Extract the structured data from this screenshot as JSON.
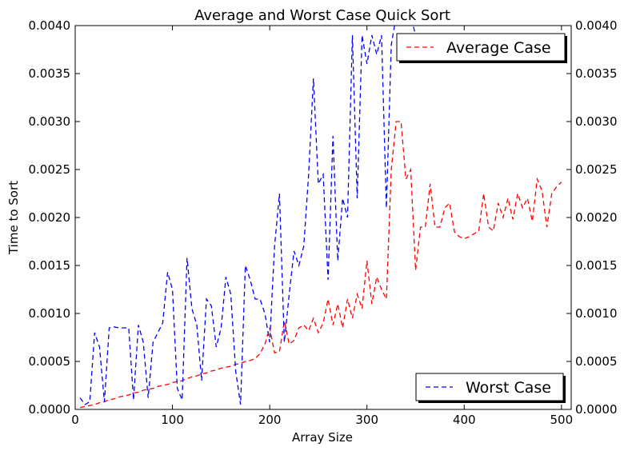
{
  "chart_data": {
    "type": "line",
    "title": "Average and Worst Case Quick Sort",
    "xlabel": "Array Size",
    "ylabel": "Time to Sort",
    "xlim": [
      0,
      510
    ],
    "ylim": [
      0,
      0.004
    ],
    "x_ticks": [
      "0",
      "100",
      "200",
      "300",
      "400",
      "500"
    ],
    "y_ticks": [
      "0.0000",
      "0.0005",
      "0.0010",
      "0.0015",
      "0.0020",
      "0.0025",
      "0.0030",
      "0.0035",
      "0.0040"
    ],
    "y_ticks_right": [
      "0.0000",
      "0.0005",
      "0.0010",
      "0.0015",
      "0.0020",
      "0.0025",
      "0.0030",
      "0.0035",
      "0.0040"
    ],
    "grid": false,
    "series": [
      {
        "name": "Average Case",
        "color": "#ff0000",
        "dash": "dashed",
        "legend_position": "top-right",
        "x": [
          5,
          10,
          15,
          20,
          25,
          30,
          35,
          40,
          45,
          50,
          55,
          60,
          65,
          70,
          75,
          80,
          85,
          90,
          95,
          100,
          105,
          110,
          115,
          120,
          125,
          130,
          135,
          140,
          145,
          150,
          155,
          160,
          165,
          170,
          175,
          180,
          185,
          190,
          195,
          200,
          205,
          210,
          215,
          220,
          225,
          230,
          235,
          240,
          245,
          250,
          255,
          260,
          265,
          270,
          275,
          280,
          285,
          290,
          295,
          300,
          305,
          310,
          315,
          320,
          325,
          330,
          335,
          340,
          345,
          350,
          355,
          360,
          365,
          370,
          375,
          380,
          385,
          390,
          395,
          400,
          405,
          410,
          415,
          420,
          425,
          430,
          435,
          440,
          445,
          450,
          455,
          460,
          465,
          470,
          475,
          480,
          485,
          490,
          495,
          500
        ],
        "values": [
          2e-05,
          3e-05,
          4e-05,
          5e-05,
          7e-05,
          8e-05,
          0.0001,
          0.00011,
          0.00013,
          0.00014,
          0.00015,
          0.00017,
          0.00018,
          0.0002,
          0.00021,
          0.00022,
          0.00024,
          0.00025,
          0.00026,
          0.00028,
          0.00029,
          0.0003,
          0.00032,
          0.00034,
          0.00035,
          0.00037,
          0.00038,
          0.0004,
          0.00041,
          0.00043,
          0.00044,
          0.00045,
          0.00047,
          0.00048,
          0.0005,
          0.00051,
          0.00053,
          0.00058,
          0.00068,
          0.00085,
          0.00059,
          0.0006,
          0.00092,
          0.00068,
          0.00072,
          0.00085,
          0.00088,
          0.00082,
          0.00095,
          0.0008,
          0.0009,
          0.00115,
          0.00088,
          0.0011,
          0.00085,
          0.00115,
          0.00095,
          0.0012,
          0.00105,
          0.00155,
          0.0011,
          0.00138,
          0.00125,
          0.00115,
          0.0025,
          0.003,
          0.003,
          0.0024,
          0.0025,
          0.00145,
          0.0019,
          0.0019,
          0.00235,
          0.0019,
          0.0019,
          0.0021,
          0.00215,
          0.00185,
          0.0018,
          0.00178,
          0.0018,
          0.00183,
          0.00186,
          0.00225,
          0.0019,
          0.00186,
          0.00215,
          0.002,
          0.0022,
          0.00198,
          0.00225,
          0.0021,
          0.0022,
          0.00196,
          0.0024,
          0.00228,
          0.0019,
          0.00225,
          0.00232,
          0.00237
        ]
      },
      {
        "name": "Worst Case",
        "color": "#0000ff",
        "dash": "dashed",
        "legend_position": "bottom-right",
        "x": [
          5,
          10,
          15,
          20,
          25,
          30,
          35,
          40,
          45,
          50,
          55,
          60,
          65,
          70,
          75,
          80,
          85,
          90,
          95,
          100,
          105,
          110,
          115,
          120,
          125,
          130,
          135,
          140,
          145,
          150,
          155,
          160,
          165,
          170,
          175,
          180,
          185,
          190,
          195,
          200,
          205,
          210,
          215,
          220,
          225,
          230,
          235,
          240,
          245,
          250,
          255,
          260,
          265,
          270,
          275,
          280,
          285,
          290,
          295,
          300,
          305,
          310,
          315,
          320,
          325,
          330,
          335,
          340,
          345,
          350
        ],
        "values": [
          0.00012,
          5e-05,
          8e-05,
          0.0008,
          0.00065,
          8e-05,
          0.00085,
          0.00086,
          0.00085,
          0.00085,
          0.00085,
          0.0001,
          0.00088,
          0.0007,
          0.00012,
          0.0007,
          0.0008,
          0.0009,
          0.00143,
          0.00125,
          0.00022,
          0.0001,
          0.00158,
          0.00105,
          0.00088,
          0.0003,
          0.00115,
          0.00108,
          0.00065,
          0.00085,
          0.00138,
          0.0012,
          0.0004,
          5e-05,
          0.0015,
          0.00135,
          0.00115,
          0.00115,
          0.001,
          0.0007,
          0.0017,
          0.00225,
          0.0007,
          0.0012,
          0.00165,
          0.0015,
          0.0017,
          0.00245,
          0.00345,
          0.00235,
          0.00245,
          0.00135,
          0.00285,
          0.00155,
          0.0022,
          0.002,
          0.0039,
          0.0022,
          0.0039,
          0.0036,
          0.0039,
          0.0037,
          0.0039,
          0.0021,
          0.0038,
          0.0041,
          0.0041,
          0.0041,
          0.0041,
          0.0039
        ]
      }
    ]
  }
}
